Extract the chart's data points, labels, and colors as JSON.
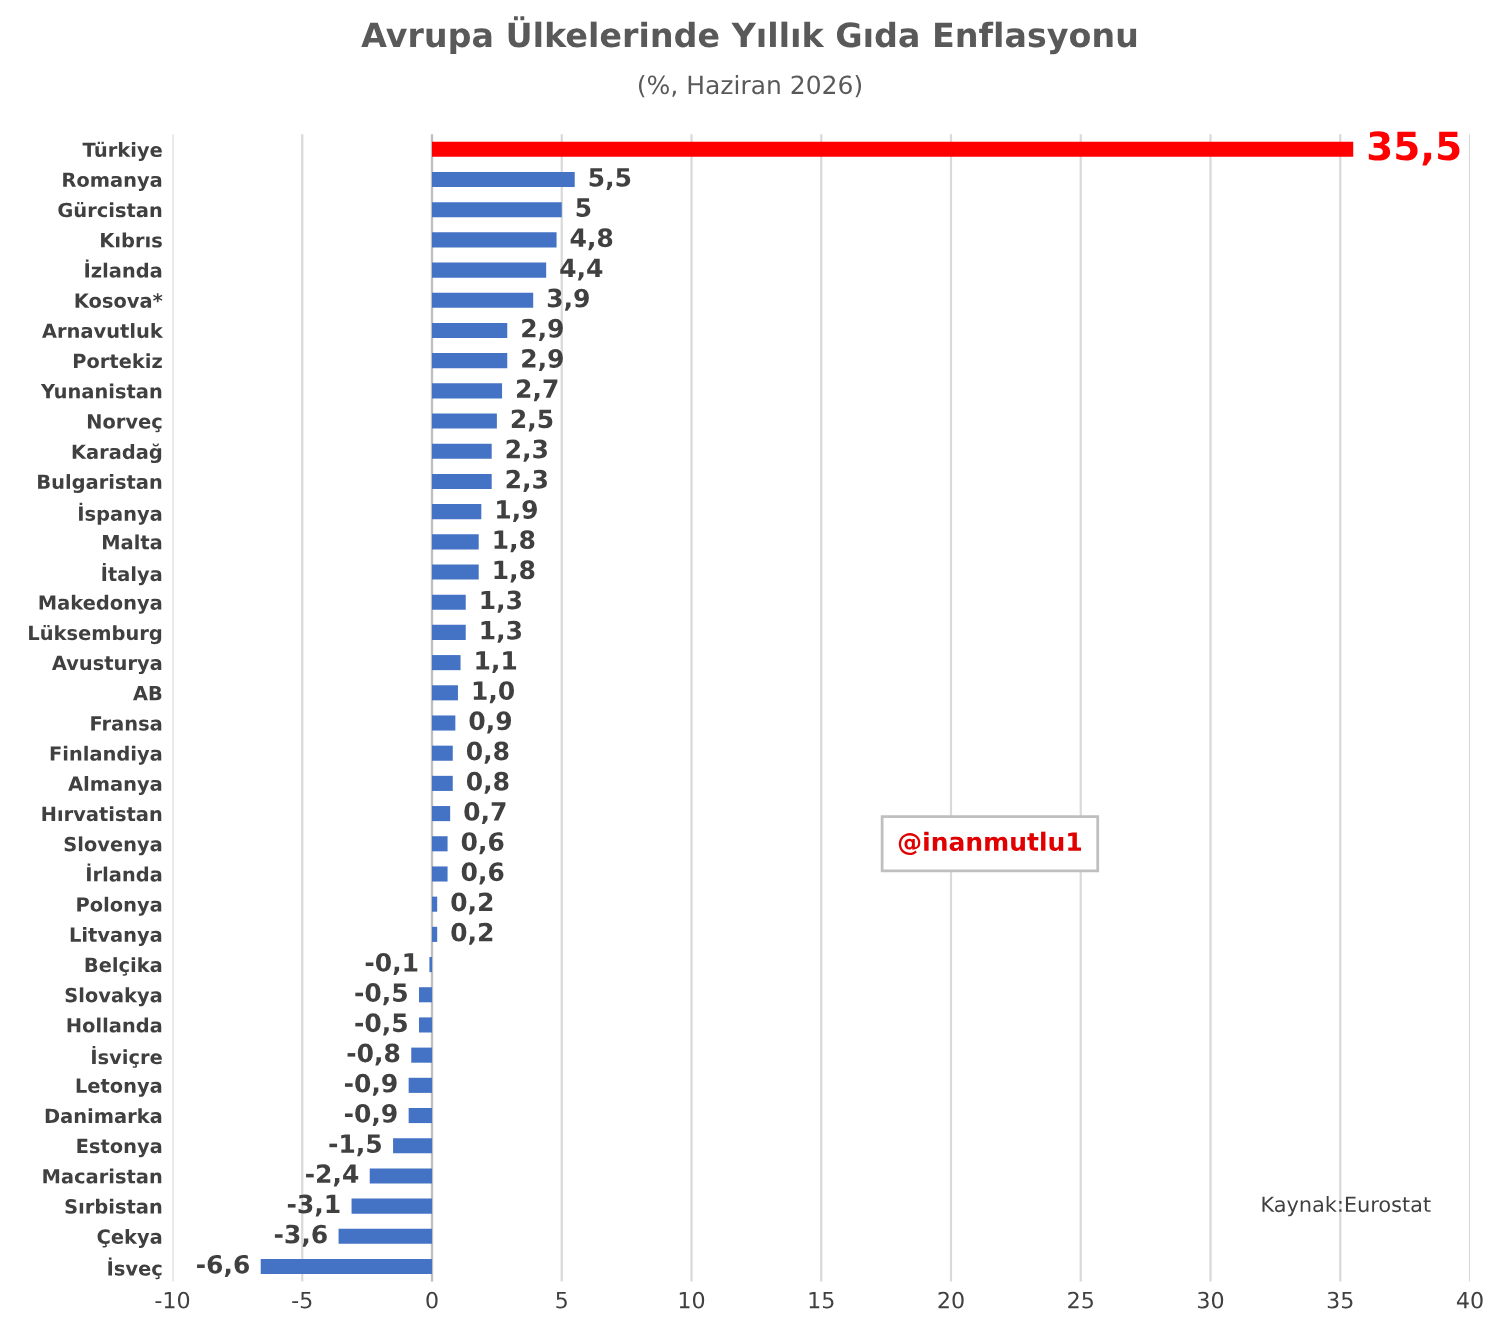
{
  "chart_data": {
    "type": "bar",
    "orientation": "horizontal",
    "title": "Avrupa Ülkelerinde Yıllık Gıda Enflasyonu",
    "subtitle": "(%, Haziran 2026)",
    "categories": [
      "Türkiye",
      "Romanya",
      "Gürcistan",
      "Kıbrıs",
      "İzlanda",
      "Kosova*",
      "Arnavutluk",
      "Portekiz",
      "Yunanistan",
      "Norveç",
      "Karadağ",
      "Bulgaristan",
      "İspanya",
      "Malta",
      "İtalya",
      "Makedonya",
      "Lüksemburg",
      "Avusturya",
      "AB",
      "Fransa",
      "Finlandiya",
      "Almanya",
      "Hırvatistan",
      "Slovenya",
      "İrlanda",
      "Polonya",
      "Litvanya",
      "Belçika",
      "Slovakya",
      "Hollanda",
      "İsviçre",
      "Letonya",
      "Danimarka",
      "Estonya",
      "Macaristan",
      "Sırbistan",
      "Çekya",
      "İsveç"
    ],
    "values": [
      35.5,
      5.5,
      5,
      4.8,
      4.4,
      3.9,
      2.9,
      2.9,
      2.7,
      2.5,
      2.3,
      2.3,
      1.9,
      1.8,
      1.8,
      1.3,
      1.3,
      1.1,
      1.0,
      0.9,
      0.8,
      0.8,
      0.7,
      0.6,
      0.6,
      0.2,
      0.2,
      -0.1,
      -0.5,
      -0.5,
      -0.8,
      -0.9,
      -0.9,
      -1.5,
      -2.4,
      -3.1,
      -3.6,
      -6.6
    ],
    "value_labels": [
      "35,5",
      "5,5",
      "5",
      "4,8",
      "4,4",
      "3,9",
      "2,9",
      "2,9",
      "2,7",
      "2,5",
      "2,3",
      "2,3",
      "1,9",
      "1,8",
      "1,8",
      "1,3",
      "1,3",
      "1,1",
      "1,0",
      "0,9",
      "0,8",
      "0,8",
      "0,7",
      "0,6",
      "0,6",
      "0,2",
      "0,2",
      "-0,1",
      "-0,5",
      "-0,5",
      "-0,8",
      "-0,9",
      "-0,9",
      "-1,5",
      "-2,4",
      "-3,1",
      "-3,6",
      "-6,6"
    ],
    "colors": [
      "#ff0000",
      "#4472c4",
      "#4472c4",
      "#4472c4",
      "#4472c4",
      "#4472c4",
      "#4472c4",
      "#4472c4",
      "#4472c4",
      "#4472c4",
      "#4472c4",
      "#4472c4",
      "#4472c4",
      "#4472c4",
      "#4472c4",
      "#4472c4",
      "#4472c4",
      "#4472c4",
      "#4472c4",
      "#4472c4",
      "#4472c4",
      "#4472c4",
      "#4472c4",
      "#4472c4",
      "#4472c4",
      "#4472c4",
      "#4472c4",
      "#4472c4",
      "#4472c4",
      "#4472c4",
      "#4472c4",
      "#4472c4",
      "#4472c4",
      "#4472c4",
      "#4472c4",
      "#4472c4",
      "#4472c4",
      "#4472c4"
    ],
    "xlim": [
      -10,
      40
    ],
    "xticks": [
      -10,
      -5,
      0,
      5,
      10,
      15,
      20,
      25,
      30,
      35,
      40
    ],
    "grid": "x",
    "legend": false,
    "annotations": [
      "@inanmutlu1",
      "Kaynak:Eurostat"
    ]
  }
}
